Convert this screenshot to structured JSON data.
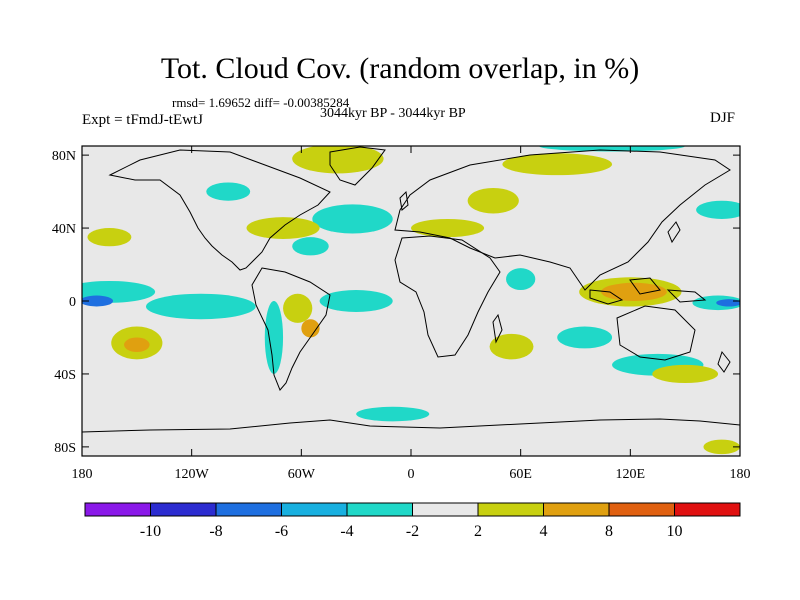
{
  "title": "Tot. Cloud Cov. (random overlap, in %)",
  "stats": "rmsd= 1.69652 diff= -0.00385284",
  "period": "3044kyr BP - 3044kyr BP",
  "expt": "Expt = tFmdJ-tEwtJ",
  "season": "DJF",
  "lat_labels": [
    "80N",
    "40N",
    "0",
    "40S",
    "80S"
  ],
  "lat_values": [
    80,
    40,
    0,
    -40,
    -80
  ],
  "lon_labels": [
    "180",
    "120W",
    "60W",
    "0",
    "60E",
    "120E",
    "180"
  ],
  "lon_values": [
    -180,
    -120,
    -60,
    0,
    60,
    120,
    180
  ],
  "colorbar": {
    "labels": [
      "-10",
      "-8",
      "-6",
      "-4",
      "-2",
      "2",
      "4",
      "8",
      "10"
    ],
    "colors": [
      "#8a18e8",
      "#2c2cd0",
      "#1e6fe0",
      "#18b0e0",
      "#20d8c8",
      "#e8e8e8",
      "#c8d010",
      "#e0a010",
      "#e06010",
      "#e01010"
    ]
  },
  "colors": {
    "neutral": "#e8e8e8",
    "pos_light": "#c8d010",
    "pos_mid": "#e0a010",
    "neg_light": "#20d8c8",
    "neg_mid": "#18b0e0",
    "neg_strong": "#1e6fe0"
  },
  "anomaly_regions": [
    {
      "lon": -165,
      "lat": 5,
      "rx": 25,
      "ry": 6,
      "level": "neg_light"
    },
    {
      "lon": -172,
      "lat": 0,
      "rx": 9,
      "ry": 3,
      "level": "neg_strong"
    },
    {
      "lon": -115,
      "lat": -3,
      "rx": 30,
      "ry": 7,
      "level": "neg_light"
    },
    {
      "lon": -150,
      "lat": -23,
      "rx": 14,
      "ry": 9,
      "level": "pos_light"
    },
    {
      "lon": -150,
      "lat": -24,
      "rx": 7,
      "ry": 4,
      "level": "pos_mid"
    },
    {
      "lon": -75,
      "lat": -20,
      "rx": 5,
      "ry": 20,
      "level": "neg_light"
    },
    {
      "lon": -62,
      "lat": -4,
      "rx": 8,
      "ry": 8,
      "level": "pos_light"
    },
    {
      "lon": -55,
      "lat": -15,
      "rx": 5,
      "ry": 5,
      "level": "pos_mid"
    },
    {
      "lon": -30,
      "lat": 0,
      "rx": 20,
      "ry": 6,
      "level": "neg_light"
    },
    {
      "lon": -32,
      "lat": 45,
      "rx": 22,
      "ry": 8,
      "level": "neg_light"
    },
    {
      "lon": -70,
      "lat": 40,
      "rx": 20,
      "ry": 6,
      "level": "pos_light"
    },
    {
      "lon": -55,
      "lat": 30,
      "rx": 10,
      "ry": 5,
      "level": "neg_light"
    },
    {
      "lon": 20,
      "lat": 40,
      "rx": 20,
      "ry": 5,
      "level": "pos_light"
    },
    {
      "lon": 45,
      "lat": 55,
      "rx": 14,
      "ry": 7,
      "level": "pos_light"
    },
    {
      "lon": 80,
      "lat": 75,
      "rx": 30,
      "ry": 6,
      "level": "pos_light"
    },
    {
      "lon": 110,
      "lat": 85,
      "rx": 40,
      "ry": 3,
      "level": "neg_light"
    },
    {
      "lon": -40,
      "lat": 78,
      "rx": 25,
      "ry": 8,
      "level": "pos_light"
    },
    {
      "lon": 120,
      "lat": 5,
      "rx": 28,
      "ry": 8,
      "level": "pos_light"
    },
    {
      "lon": 122,
      "lat": 5,
      "rx": 18,
      "ry": 5,
      "level": "pos_mid"
    },
    {
      "lon": 168,
      "lat": -1,
      "rx": 14,
      "ry": 4,
      "level": "neg_light"
    },
    {
      "lon": 174,
      "lat": -1,
      "rx": 7,
      "ry": 2,
      "level": "neg_strong"
    },
    {
      "lon": 135,
      "lat": -35,
      "rx": 25,
      "ry": 6,
      "level": "neg_light"
    },
    {
      "lon": 55,
      "lat": -25,
      "rx": 12,
      "ry": 7,
      "level": "pos_light"
    },
    {
      "lon": 95,
      "lat": -20,
      "rx": 15,
      "ry": 6,
      "level": "neg_light"
    },
    {
      "lon": 150,
      "lat": -40,
      "rx": 18,
      "ry": 5,
      "level": "pos_light"
    },
    {
      "lon": -10,
      "lat": -62,
      "rx": 20,
      "ry": 4,
      "level": "neg_light"
    },
    {
      "lon": 170,
      "lat": -80,
      "rx": 10,
      "ry": 4,
      "level": "pos_light"
    },
    {
      "lon": 60,
      "lat": 12,
      "rx": 8,
      "ry": 6,
      "level": "neg_light"
    },
    {
      "lon": -100,
      "lat": 60,
      "rx": 12,
      "ry": 5,
      "level": "neg_light"
    },
    {
      "lon": 170,
      "lat": 50,
      "rx": 14,
      "ry": 5,
      "level": "neg_light"
    },
    {
      "lon": -165,
      "lat": 35,
      "rx": 12,
      "ry": 5,
      "level": "pos_light"
    }
  ]
}
